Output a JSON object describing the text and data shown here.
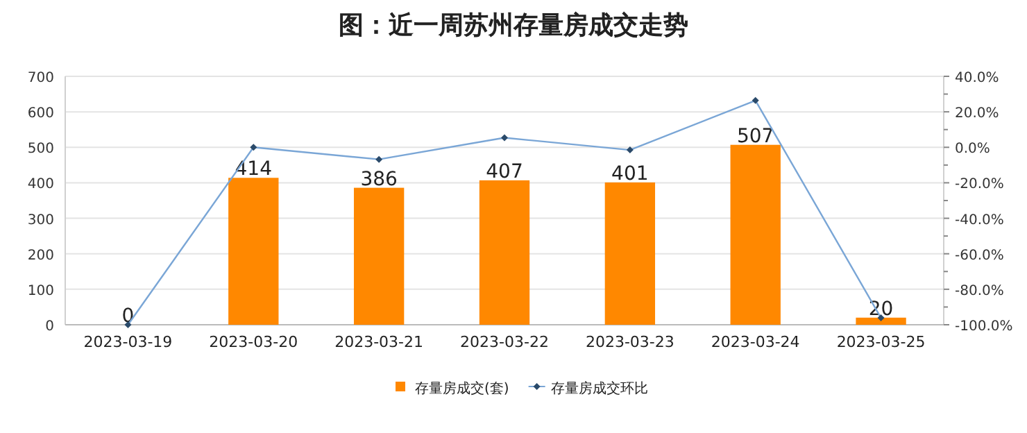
{
  "chart_data": {
    "type": "bar",
    "title": "图：近一周苏州存量房成交走势",
    "categories": [
      "2023-03-19",
      "2023-03-20",
      "2023-03-21",
      "2023-03-22",
      "2023-03-23",
      "2023-03-24",
      "2023-03-25"
    ],
    "series": [
      {
        "name": "存量房成交(套)",
        "color": "#ff8800",
        "values": [
          0,
          414,
          386,
          407,
          401,
          507,
          20
        ],
        "value_labels": [
          "0",
          "414",
          "386",
          "407",
          "401",
          "507",
          "20"
        ]
      },
      {
        "name": "存量房成交环比",
        "type": "line",
        "axis": "y2",
        "color": "#7aa6d6",
        "marker": "diamond",
        "values": [
          -100,
          0,
          -6.8,
          5.4,
          -1.5,
          26.4,
          -96.1
        ]
      }
    ],
    "ylim": [
      0,
      700
    ],
    "yticks": [
      0,
      100,
      200,
      300,
      400,
      500,
      600,
      700
    ],
    "y2lim": [
      -100,
      40
    ],
    "y2ticks": [
      {
        "value": -100,
        "label": "-100.0%"
      },
      {
        "value": -80,
        "label": "-80.0%"
      },
      {
        "value": -60,
        "label": "-60.0%"
      },
      {
        "value": -40,
        "label": "-40.0%"
      },
      {
        "value": -20,
        "label": "-20.0%"
      },
      {
        "value": 0,
        "label": "0.0%"
      },
      {
        "value": 20,
        "label": "20.0%"
      },
      {
        "value": 40,
        "label": "40.0%"
      }
    ],
    "grid": "y",
    "legend": "bottom"
  }
}
